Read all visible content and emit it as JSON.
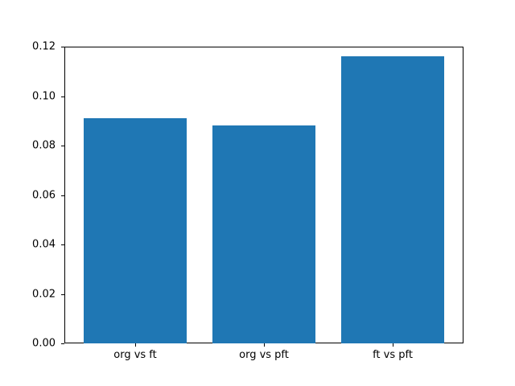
{
  "chart_data": {
    "type": "bar",
    "title": "",
    "xlabel": "",
    "ylabel": "",
    "categories": [
      "org vs ft",
      "org vs pft",
      "ft vs pft"
    ],
    "values": [
      0.091,
      0.088,
      0.116
    ],
    "ylim": [
      0,
      0.12
    ],
    "yticks": [
      0,
      0.02,
      0.04,
      0.06,
      0.08,
      0.1,
      0.12
    ],
    "ytick_labels": [
      "0.00",
      "0.02",
      "0.04",
      "0.06",
      "0.08",
      "0.10",
      "0.12"
    ],
    "bar_color": "#1f77b4",
    "axis_color": "#000000",
    "background": "#ffffff",
    "grid": false,
    "legend": "none",
    "bar_width_fraction": 0.8
  }
}
